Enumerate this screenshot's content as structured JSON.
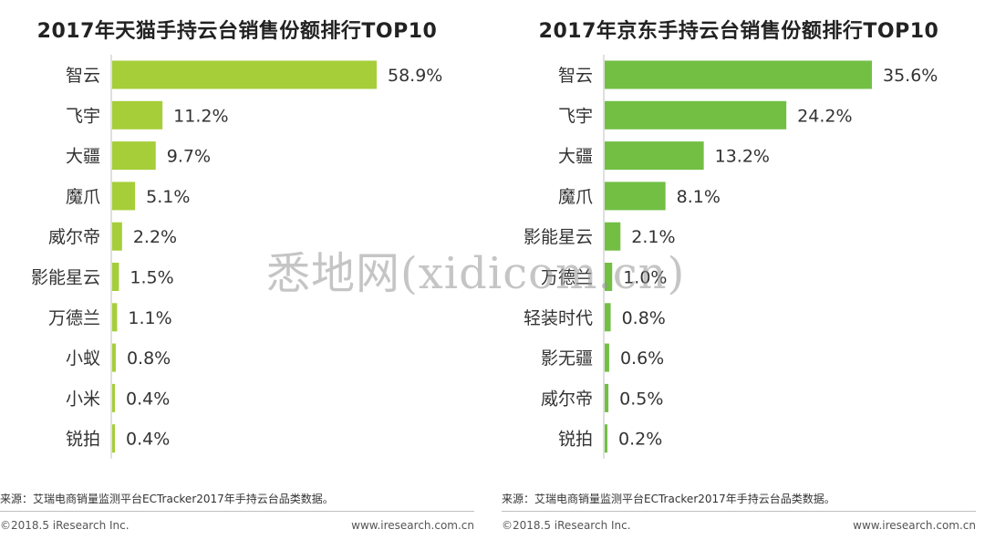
{
  "chart_data": [
    {
      "type": "bar",
      "orientation": "horizontal",
      "title": "2017年天猫手持云台销售份额排行TOP10",
      "categories": [
        "智云",
        "飞宇",
        "大疆",
        "魔爪",
        "威尔帝",
        "影能星云",
        "万德兰",
        "小蚁",
        "小米",
        "锐拍"
      ],
      "values": [
        58.9,
        11.2,
        9.7,
        5.1,
        2.2,
        1.5,
        1.1,
        0.8,
        0.4,
        0.4
      ],
      "value_labels": [
        "58.9%",
        "11.2%",
        "9.7%",
        "5.1%",
        "2.2%",
        "1.5%",
        "1.1%",
        "0.8%",
        "0.4%",
        "0.4%"
      ],
      "unit": "%",
      "color": "#a6ce39",
      "grid": false
    },
    {
      "type": "bar",
      "orientation": "horizontal",
      "title": "2017年京东手持云台销售份额排行TOP10",
      "categories": [
        "智云",
        "飞宇",
        "大疆",
        "魔爪",
        "影能星云",
        "万德兰",
        "轻装时代",
        "影无疆",
        "威尔帝",
        "锐拍"
      ],
      "values": [
        35.6,
        24.2,
        13.2,
        8.1,
        2.1,
        1.0,
        0.8,
        0.6,
        0.5,
        0.2
      ],
      "value_labels": [
        "35.6%",
        "24.2%",
        "13.2%",
        "8.1%",
        "2.1%",
        "1.0%",
        "0.8%",
        "0.6%",
        "0.5%",
        "0.2%"
      ],
      "unit": "%",
      "color": "#72bf44",
      "grid": false
    }
  ],
  "source_text": "来源：艾瑞电商销量监测平台ECTracker2017年手持云台品类数据。",
  "copyright": "©2018.5 iResearch Inc.",
  "website": "www.iresearch.com.cn",
  "watermark": "悉地网(xidicom.cn)"
}
